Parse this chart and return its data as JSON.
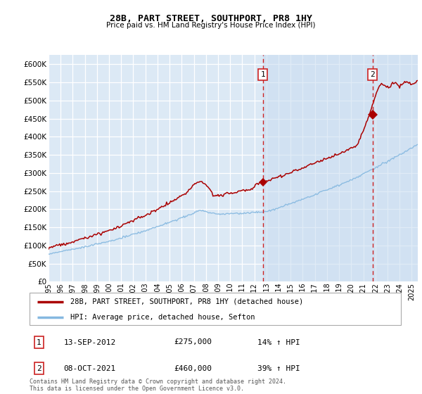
{
  "title": "28B, PART STREET, SOUTHPORT, PR8 1HY",
  "subtitle": "Price paid vs. HM Land Registry's House Price Index (HPI)",
  "ytick_values": [
    0,
    50000,
    100000,
    150000,
    200000,
    250000,
    300000,
    350000,
    400000,
    450000,
    500000,
    550000,
    600000
  ],
  "ylim": [
    0,
    625000
  ],
  "xlim_start": 1995.0,
  "xlim_end": 2025.5,
  "background_color": "#dce9f5",
  "legend_line1": "28B, PART STREET, SOUTHPORT, PR8 1HY (detached house)",
  "legend_line2": "HPI: Average price, detached house, Sefton",
  "sale1_date": "13-SEP-2012",
  "sale1_price": "£275,000",
  "sale1_hpi": "14% ↑ HPI",
  "sale1_x": 2012.71,
  "sale1_y": 275000,
  "sale2_date": "08-OCT-2021",
  "sale2_price": "£460,000",
  "sale2_hpi": "39% ↑ HPI",
  "sale2_x": 2021.78,
  "sale2_y": 460000,
  "red_line_color": "#aa0000",
  "blue_line_color": "#85b8e0",
  "shade_color": "#dce9f5",
  "footnote": "Contains HM Land Registry data © Crown copyright and database right 2024.\nThis data is licensed under the Open Government Licence v3.0.",
  "xtick_years": [
    1995,
    1996,
    1997,
    1998,
    1999,
    2000,
    2001,
    2002,
    2003,
    2004,
    2005,
    2006,
    2007,
    2008,
    2009,
    2010,
    2011,
    2012,
    2013,
    2014,
    2015,
    2016,
    2017,
    2018,
    2019,
    2020,
    2021,
    2022,
    2023,
    2024,
    2025
  ]
}
